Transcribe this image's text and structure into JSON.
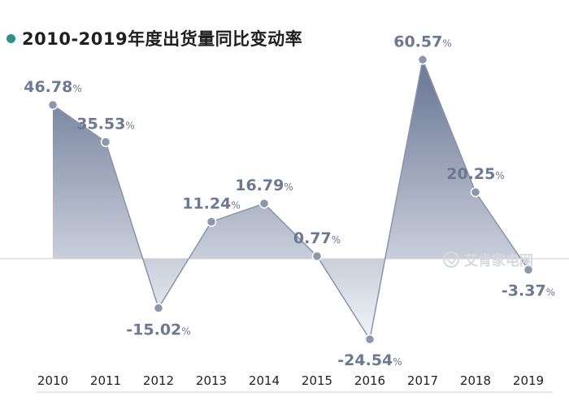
{
  "title": "2010-2019年度出货量同比变动率",
  "watermark": "艾肯家电网",
  "colors": {
    "dot": "#2f8f8c",
    "line": "#8a94a8",
    "point": "#8d97ab",
    "label": "#6d7893",
    "fill_top": "#6b7896",
    "fill_bottom": "#f2f4f8",
    "axis": "#c9ced8"
  },
  "chart_data": {
    "type": "area",
    "title": "2010-2019年度出货量同比变动率",
    "categories": [
      "2010",
      "2011",
      "2012",
      "2013",
      "2014",
      "2015",
      "2016",
      "2017",
      "2018",
      "2019"
    ],
    "values": [
      46.78,
      35.53,
      -15.02,
      11.24,
      16.79,
      0.77,
      -24.54,
      60.57,
      20.25,
      -3.37
    ],
    "value_labels": [
      "46.78",
      "35.53",
      "-15.02",
      "11.24",
      "16.79",
      "0.77",
      "-24.54",
      "60.57",
      "20.25",
      "-3.37"
    ],
    "unit": "%",
    "ylim": [
      -30,
      70
    ],
    "grid": false,
    "legend": "none"
  }
}
